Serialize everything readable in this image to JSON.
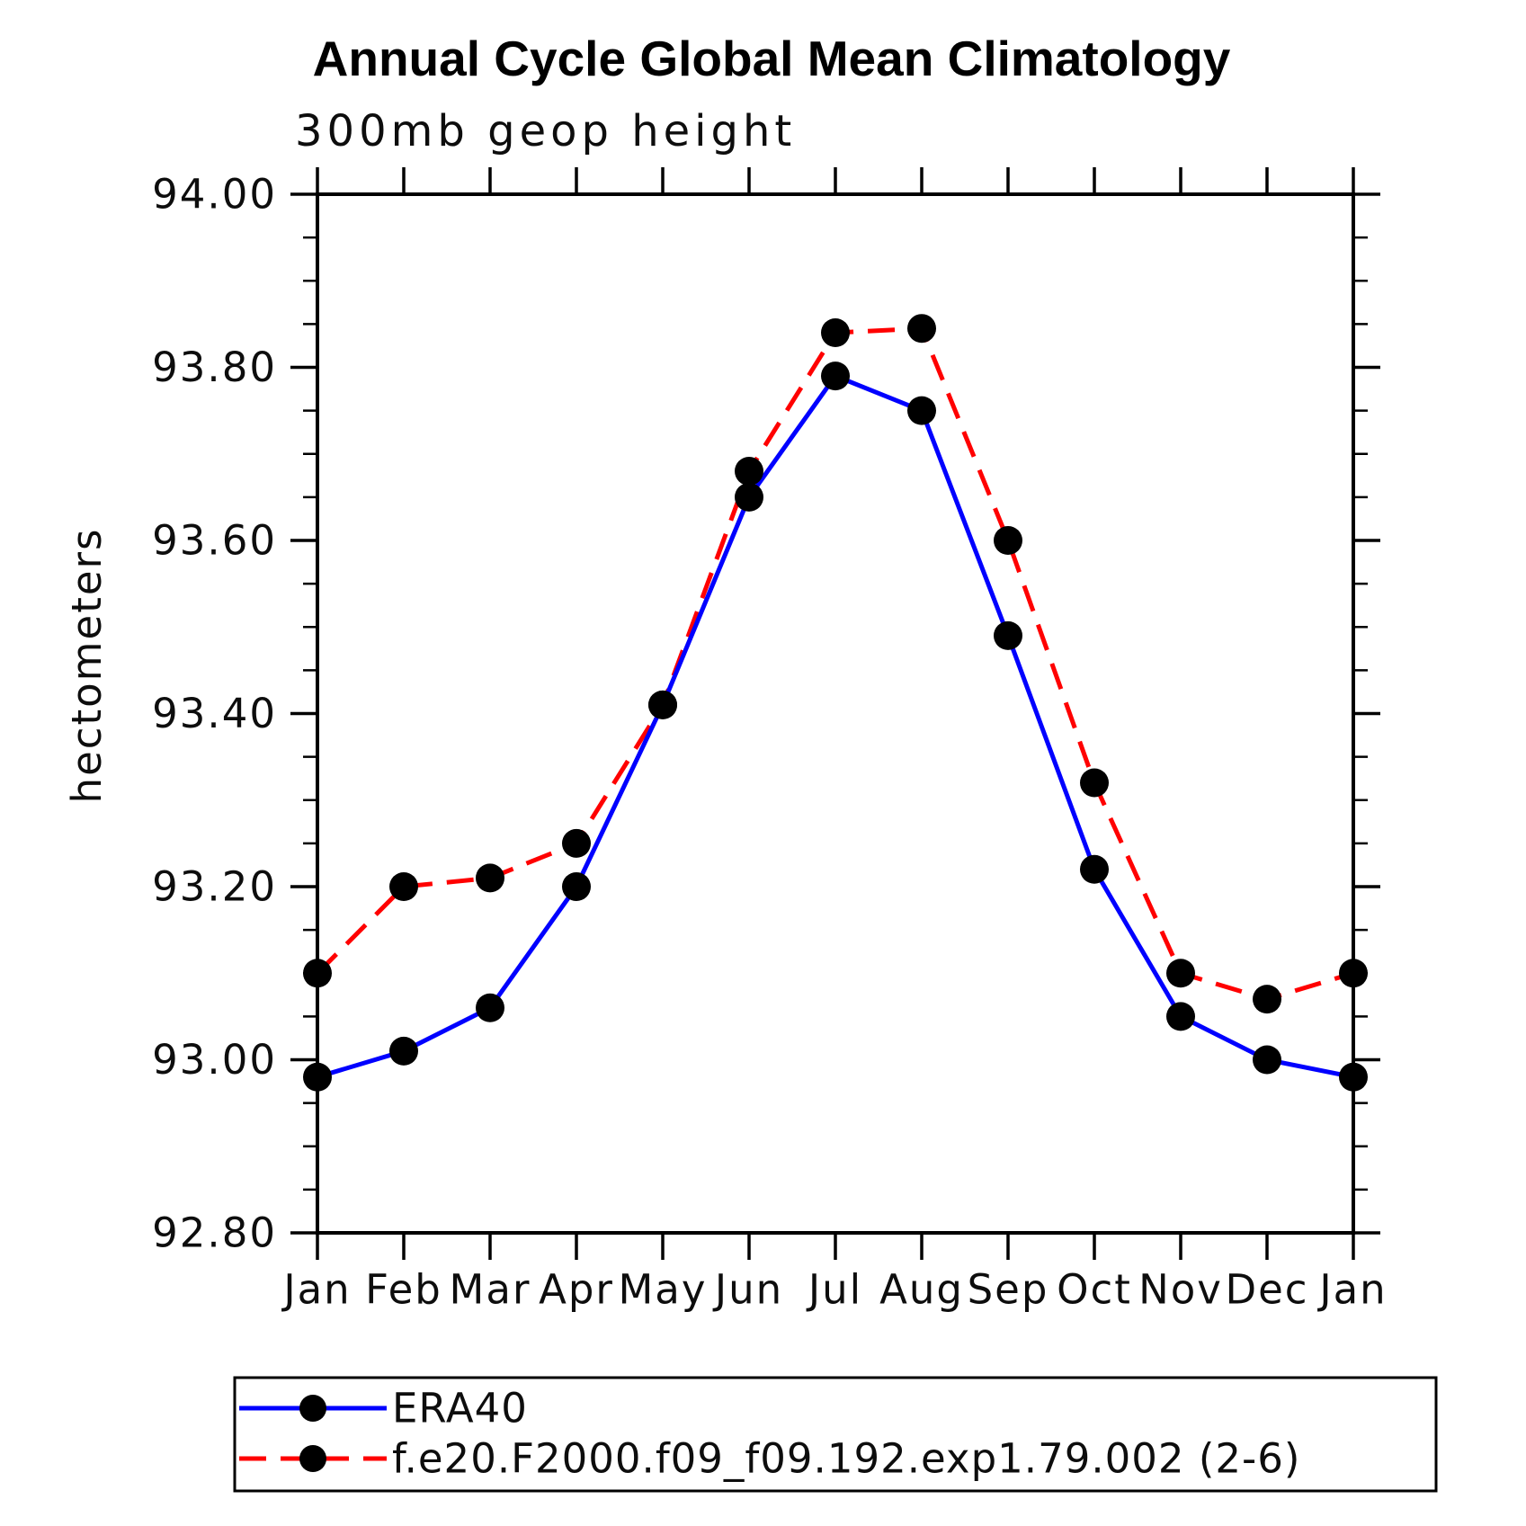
{
  "title": "Annual Cycle Global Mean Climatology",
  "subtitle": "300mb geop height",
  "ylabel": "hectometers",
  "chart_data": {
    "type": "line",
    "x_categories": [
      "Jan",
      "Feb",
      "Mar",
      "Apr",
      "May",
      "Jun",
      "Jul",
      "Aug",
      "Sep",
      "Oct",
      "Nov",
      "Dec",
      "Jan"
    ],
    "ylim": [
      92.8,
      94.0
    ],
    "ytick_interval": 0.2,
    "yminor_interval": 0.05,
    "ytick_values": [
      92.8,
      93.0,
      93.2,
      93.4,
      93.6,
      93.8,
      94.0
    ],
    "ytick_labels": [
      "92.80",
      "93.00",
      "93.20",
      "93.40",
      "93.60",
      "93.80",
      "94.00"
    ],
    "grid": "off",
    "legend_position": "bottom",
    "frame_color": "#000000",
    "marker_color": "#000000",
    "series": [
      {
        "name": "ERA40",
        "color": "#0000ff",
        "style": "solid",
        "marker": "circle",
        "values": [
          92.98,
          93.01,
          93.06,
          93.2,
          93.41,
          93.65,
          93.79,
          93.75,
          93.49,
          93.22,
          93.05,
          93.0,
          92.98
        ]
      },
      {
        "name": "f.e20.F2000.f09_f09.192.exp1.79.002 (2-6)",
        "color": "#ff0000",
        "style": "dashed",
        "marker": "circle",
        "values": [
          93.1,
          93.2,
          93.21,
          93.25,
          93.41,
          93.68,
          93.84,
          93.845,
          93.6,
          93.32,
          93.1,
          93.07,
          93.1
        ]
      }
    ]
  }
}
